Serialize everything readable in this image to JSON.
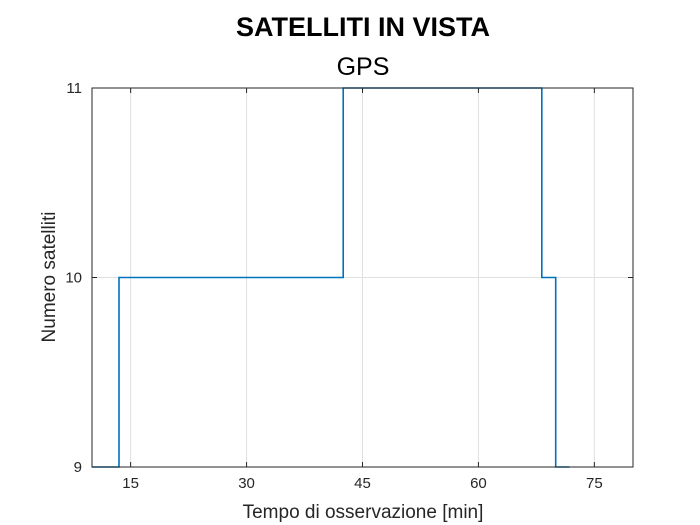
{
  "chart_data": {
    "type": "line",
    "title": "SATELLITI IN VISTA",
    "subtitle": "GPS",
    "xlabel": "Tempo di osservazione [min]",
    "ylabel": "Numero satelliti",
    "xlim": [
      10,
      80
    ],
    "ylim": [
      9,
      11
    ],
    "x_ticks": [
      15,
      30,
      45,
      60,
      75
    ],
    "y_ticks": [
      9,
      10,
      11
    ],
    "grid": true,
    "line_color": "#0072BD",
    "series": [
      {
        "x": [
          10,
          13.5,
          13.5,
          42.5,
          42.5,
          68.2,
          68.2,
          70,
          70,
          71.8
        ],
        "y": [
          9,
          9,
          10,
          10,
          11,
          11,
          10,
          10,
          9,
          9
        ]
      }
    ]
  }
}
